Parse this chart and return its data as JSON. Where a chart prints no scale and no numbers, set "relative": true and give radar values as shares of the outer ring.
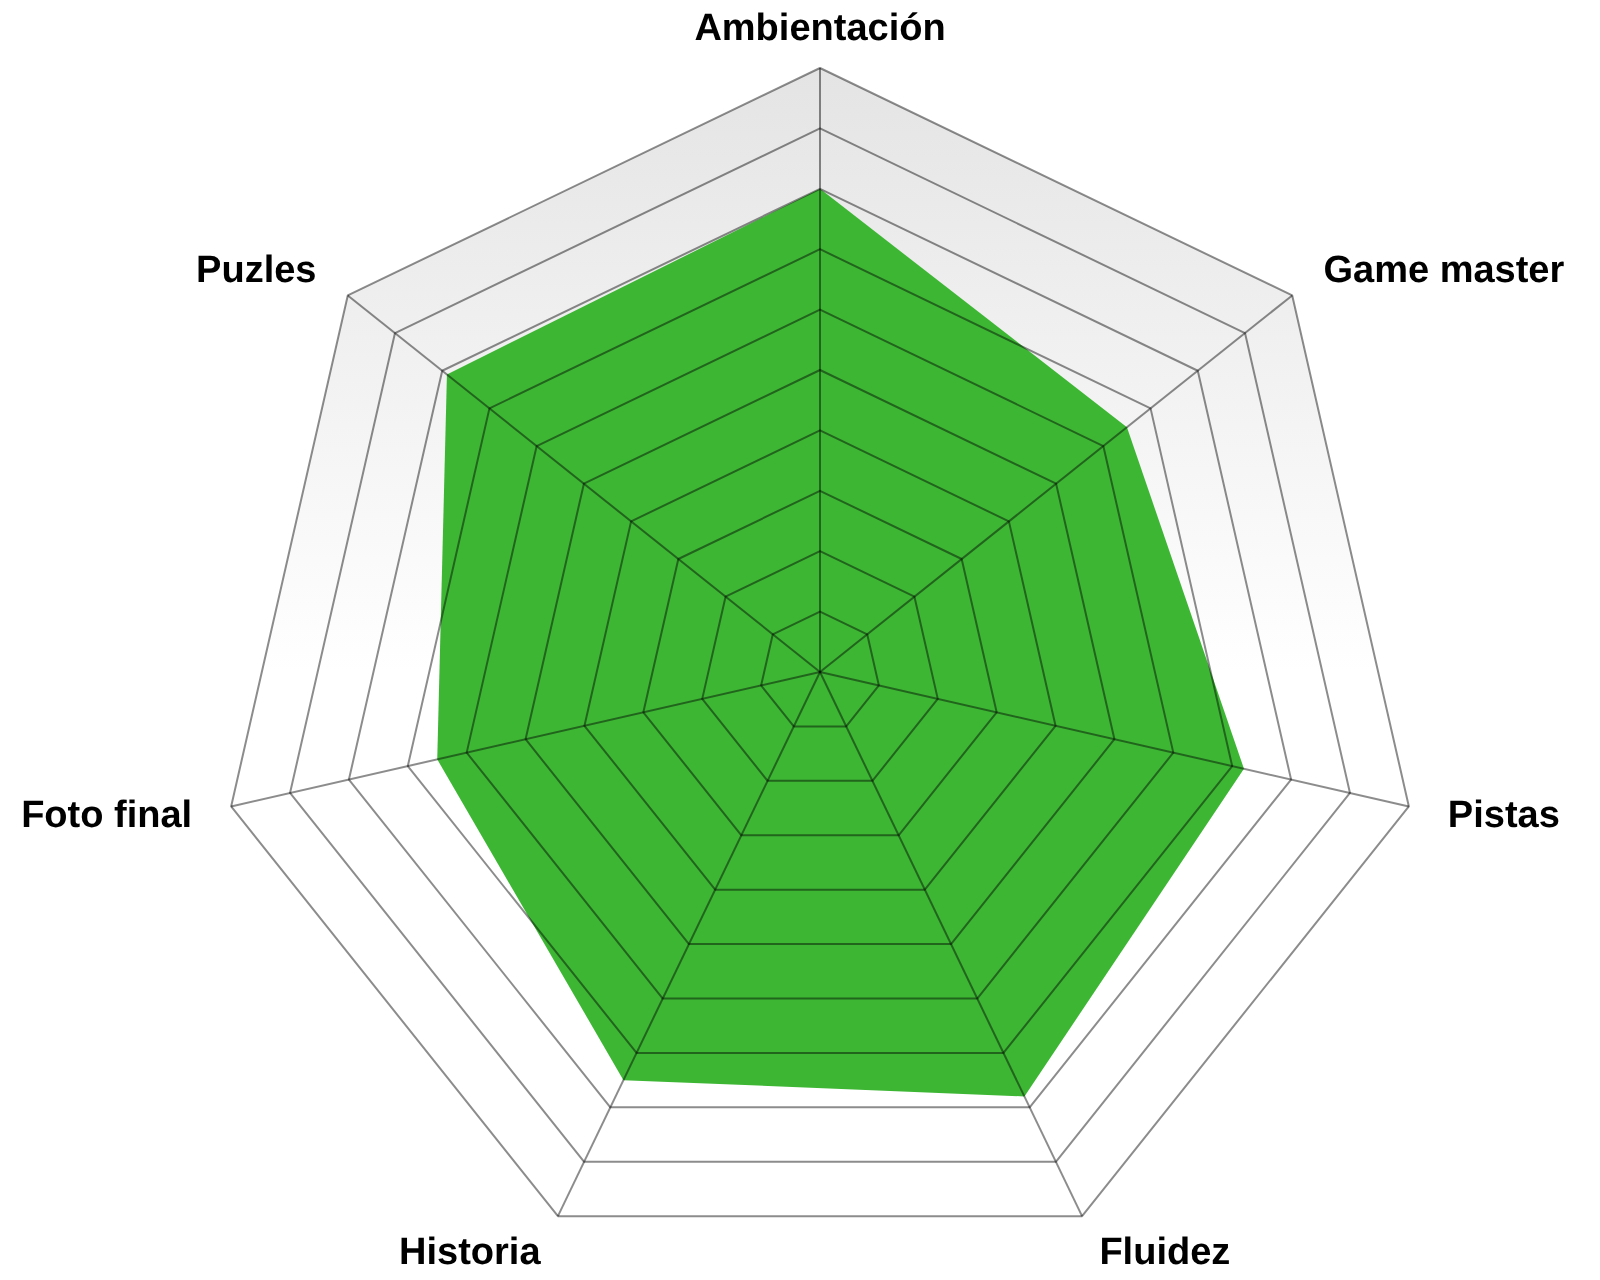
{
  "chart_data": {
    "type": "radar",
    "categories": [
      "Ambientación",
      "Game master",
      "Pistas",
      "Fluidez",
      "Historia",
      "Foto final",
      "Puzles"
    ],
    "relative": true,
    "grid": true,
    "series": [
      {
        "color": "#3db634",
        "values": [
          0.8,
          0.65,
          0.72,
          0.78,
          0.75,
          0.65,
          0.79
        ]
      }
    ]
  }
}
